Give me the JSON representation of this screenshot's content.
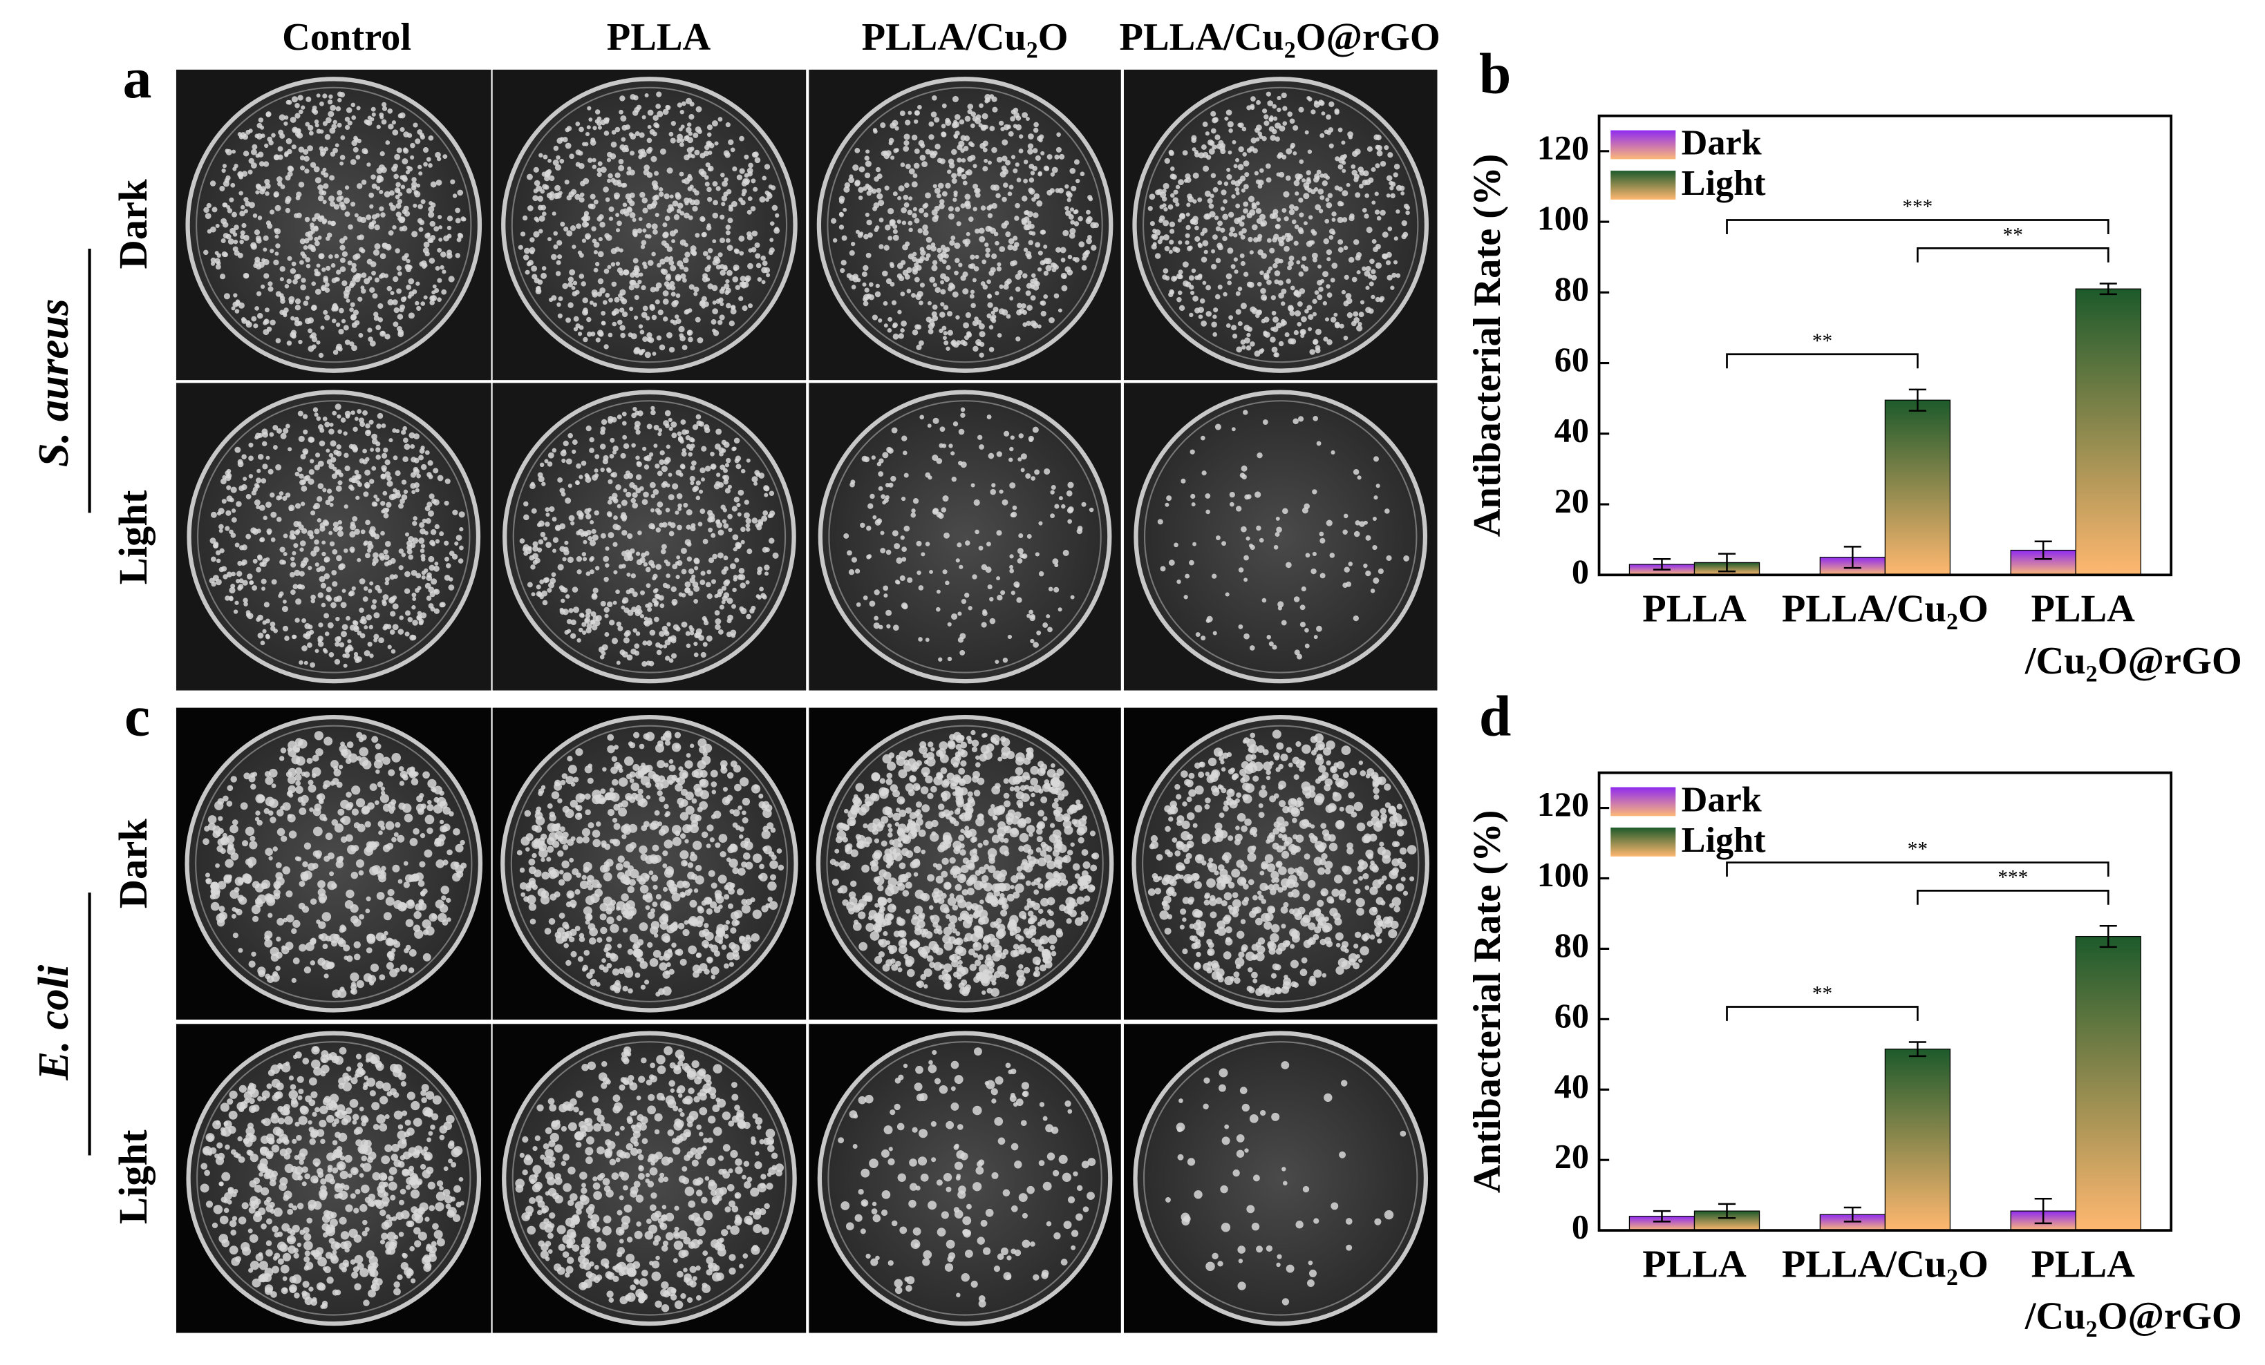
{
  "figure": {
    "columns": [
      "Control",
      "PLLA",
      "PLLA/Cu₂O",
      "PLLA/Cu₂O@rGO"
    ],
    "rows": [
      "Dark",
      "Light"
    ],
    "species": [
      "S. aureus",
      "E. coli"
    ],
    "panels": [
      "a",
      "b",
      "c",
      "d"
    ]
  },
  "chart_data": [
    {
      "type": "bar",
      "ylabel": "Antibacterial Rate (%)",
      "categories": [
        "PLLA",
        "PLLA/Cu₂O",
        "PLLA/Cu₂O@rGO"
      ],
      "series": [
        {
          "name": "Dark",
          "color": [
            "#8f2cf0",
            "#fdb877"
          ],
          "values": [
            3,
            5,
            7
          ],
          "errors": [
            1.5,
            3,
            2.5
          ]
        },
        {
          "name": "Light",
          "color": [
            "#1d5a2b",
            "#ffb870"
          ],
          "values": [
            3.5,
            49.5,
            81
          ],
          "errors": [
            2.5,
            3,
            1.5
          ]
        }
      ],
      "ylim": [
        0,
        130
      ],
      "yticks": [
        0,
        20,
        40,
        60,
        80,
        100,
        120
      ],
      "legend": "upper left",
      "annotations": [
        {
          "from": 0,
          "to": 1,
          "label": "**"
        },
        {
          "from": 1,
          "to": 2,
          "label": "**"
        },
        {
          "from": 0,
          "to": 2,
          "label": "***"
        }
      ]
    },
    {
      "type": "bar",
      "ylabel": "Antibacterial Rate (%)",
      "categories": [
        "PLLA",
        "PLLA/Cu₂O",
        "PLLA/Cu₂O@rGO"
      ],
      "series": [
        {
          "name": "Dark",
          "color": [
            "#8f2cf0",
            "#fdb877"
          ],
          "values": [
            4,
            4.5,
            5.5
          ],
          "errors": [
            1.5,
            2,
            3.5
          ]
        },
        {
          "name": "Light",
          "color": [
            "#1d5a2b",
            "#ffb870"
          ],
          "values": [
            5.5,
            51.5,
            83.5
          ],
          "errors": [
            2,
            2,
            3
          ]
        }
      ],
      "ylim": [
        0,
        130
      ],
      "yticks": [
        0,
        20,
        40,
        60,
        80,
        100,
        120
      ],
      "legend": "upper left",
      "annotations": [
        {
          "from": 0,
          "to": 1,
          "label": "**"
        },
        {
          "from": 1,
          "to": 2,
          "label": "***"
        },
        {
          "from": 0,
          "to": 2,
          "label": "**"
        }
      ]
    }
  ]
}
